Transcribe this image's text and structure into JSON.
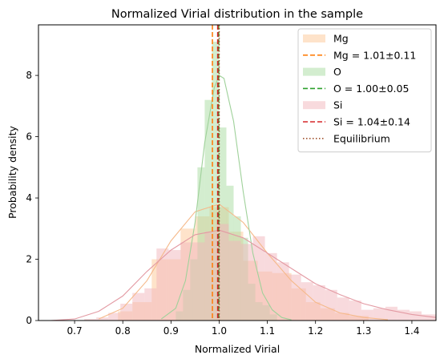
{
  "chart_data": {
    "type": "histogram",
    "title": "Normalized Virial distribution in the sample",
    "xlabel": "Normalized Virial",
    "ylabel": "Probability density",
    "xlim": [
      0.625,
      1.45
    ],
    "ylim": [
      0,
      9.65
    ],
    "xticks": [
      0.7,
      0.8,
      0.9,
      1.0,
      1.1,
      1.2,
      1.3,
      1.4
    ],
    "yticks": [
      0,
      2,
      4,
      6,
      8
    ],
    "legend_position": "top-right",
    "series": [
      {
        "name": "Mg",
        "color": "#fdc895",
        "kde_color": "#f5b98a",
        "bins": [
          [
            0.79,
            0.82,
            0.3
          ],
          [
            0.82,
            0.86,
            0.6
          ],
          [
            0.86,
            0.89,
            2.0
          ],
          [
            0.89,
            0.92,
            2.0
          ],
          [
            0.92,
            0.95,
            3.0
          ],
          [
            0.95,
            0.98,
            3.4
          ],
          [
            0.98,
            1.02,
            3.7
          ],
          [
            1.02,
            1.05,
            2.9
          ],
          [
            1.05,
            1.08,
            1.95
          ],
          [
            1.08,
            1.11,
            1.6
          ],
          [
            1.11,
            1.15,
            1.55
          ],
          [
            1.15,
            1.18,
            1.05
          ],
          [
            1.18,
            1.21,
            0.6
          ],
          [
            1.21,
            1.24,
            0.4
          ],
          [
            1.24,
            1.27,
            0.25
          ],
          [
            1.27,
            1.31,
            0.15
          ]
        ],
        "kde": [
          [
            0.75,
            0.05
          ],
          [
            0.8,
            0.4
          ],
          [
            0.85,
            1.3
          ],
          [
            0.9,
            2.6
          ],
          [
            0.95,
            3.55
          ],
          [
            1.0,
            3.8
          ],
          [
            1.05,
            3.2
          ],
          [
            1.1,
            2.2
          ],
          [
            1.15,
            1.3
          ],
          [
            1.2,
            0.6
          ],
          [
            1.25,
            0.25
          ],
          [
            1.3,
            0.1
          ],
          [
            1.35,
            0.03
          ]
        ]
      },
      {
        "name": "O",
        "color": "#a8dca0",
        "kde_color": "#9fd19a",
        "bins": [
          [
            0.91,
            0.925,
            0.3
          ],
          [
            0.925,
            0.94,
            1.0
          ],
          [
            0.94,
            0.955,
            2.0
          ],
          [
            0.955,
            0.97,
            5.0
          ],
          [
            0.97,
            0.985,
            7.2
          ],
          [
            0.985,
            1.0,
            9.1
          ],
          [
            1.0,
            1.015,
            6.3
          ],
          [
            1.015,
            1.03,
            4.4
          ],
          [
            1.03,
            1.045,
            3.4
          ],
          [
            1.045,
            1.06,
            2.7
          ],
          [
            1.06,
            1.075,
            1.2
          ],
          [
            1.075,
            1.09,
            0.6
          ],
          [
            1.09,
            1.105,
            0.5
          ],
          [
            1.105,
            1.12,
            0.2
          ]
        ],
        "kde": [
          [
            0.88,
            0.05
          ],
          [
            0.91,
            0.4
          ],
          [
            0.93,
            1.3
          ],
          [
            0.95,
            3.2
          ],
          [
            0.97,
            5.8
          ],
          [
            0.99,
            7.6
          ],
          [
            1.0,
            8.0
          ],
          [
            1.01,
            7.9
          ],
          [
            1.03,
            6.5
          ],
          [
            1.05,
            4.2
          ],
          [
            1.07,
            2.2
          ],
          [
            1.09,
            0.9
          ],
          [
            1.11,
            0.35
          ],
          [
            1.13,
            0.1
          ],
          [
            1.15,
            0.02
          ]
        ]
      },
      {
        "name": "Si",
        "color": "#f2b5bc",
        "kde_color": "#e39aa3",
        "bins": [
          [
            0.72,
            0.745,
            0.05
          ],
          [
            0.745,
            0.77,
            0.1
          ],
          [
            0.77,
            0.795,
            0.25
          ],
          [
            0.795,
            0.82,
            0.55
          ],
          [
            0.82,
            0.845,
            0.9
          ],
          [
            0.845,
            0.87,
            1.05
          ],
          [
            0.87,
            0.895,
            2.35
          ],
          [
            0.895,
            0.92,
            2.3
          ],
          [
            0.92,
            0.945,
            2.55
          ],
          [
            0.945,
            0.97,
            2.55
          ],
          [
            0.97,
            0.995,
            2.9
          ],
          [
            0.995,
            1.02,
            3.15
          ],
          [
            1.02,
            1.045,
            2.6
          ],
          [
            1.045,
            1.07,
            2.5
          ],
          [
            1.07,
            1.095,
            2.75
          ],
          [
            1.095,
            1.12,
            2.2
          ],
          [
            1.12,
            1.145,
            1.9
          ],
          [
            1.145,
            1.17,
            1.5
          ],
          [
            1.17,
            1.195,
            1.25
          ],
          [
            1.195,
            1.22,
            1.15
          ],
          [
            1.22,
            1.245,
            1.0
          ],
          [
            1.245,
            1.27,
            0.75
          ],
          [
            1.27,
            1.295,
            0.65
          ],
          [
            1.295,
            1.32,
            0.35
          ],
          [
            1.32,
            1.345,
            0.4
          ],
          [
            1.345,
            1.37,
            0.45
          ],
          [
            1.37,
            1.395,
            0.35
          ],
          [
            1.395,
            1.42,
            0.3
          ],
          [
            1.42,
            1.45,
            0.2
          ]
        ],
        "kde": [
          [
            0.65,
            0.0
          ],
          [
            0.7,
            0.05
          ],
          [
            0.75,
            0.3
          ],
          [
            0.8,
            0.8
          ],
          [
            0.85,
            1.6
          ],
          [
            0.9,
            2.3
          ],
          [
            0.95,
            2.8
          ],
          [
            1.0,
            2.95
          ],
          [
            1.05,
            2.7
          ],
          [
            1.1,
            2.2
          ],
          [
            1.15,
            1.7
          ],
          [
            1.2,
            1.2
          ],
          [
            1.25,
            0.85
          ],
          [
            1.3,
            0.55
          ],
          [
            1.35,
            0.35
          ],
          [
            1.4,
            0.2
          ],
          [
            1.45,
            0.1
          ]
        ]
      }
    ],
    "vlines": [
      {
        "label": "Mg = 1.01±0.11",
        "x": 0.986,
        "color": "#ff7f0e",
        "style": "dashed"
      },
      {
        "label": "O = 1.00±0.05",
        "x": 0.999,
        "color": "#2ca02c",
        "style": "dashed"
      },
      {
        "label": "Si = 1.04±0.14",
        "x": 0.997,
        "color": "#d62728",
        "style": "dashed"
      },
      {
        "label": "Equilibrium",
        "x": 1.0,
        "color": "#a0522d",
        "style": "dotted"
      }
    ],
    "legend": [
      {
        "label": "Mg",
        "kind": "patch",
        "color": "#fdc895"
      },
      {
        "label": "Mg = 1.01±0.11",
        "kind": "line",
        "color": "#ff7f0e",
        "style": "dashed"
      },
      {
        "label": "O",
        "kind": "patch",
        "color": "#a8dca0"
      },
      {
        "label": "O = 1.00±0.05",
        "kind": "line",
        "color": "#2ca02c",
        "style": "dashed"
      },
      {
        "label": "Si",
        "kind": "patch",
        "color": "#f2b5bc"
      },
      {
        "label": "Si = 1.04±0.14",
        "kind": "line",
        "color": "#d62728",
        "style": "dashed"
      },
      {
        "label": "Equilibrium",
        "kind": "line",
        "color": "#a0522d",
        "style": "dotted"
      }
    ]
  }
}
